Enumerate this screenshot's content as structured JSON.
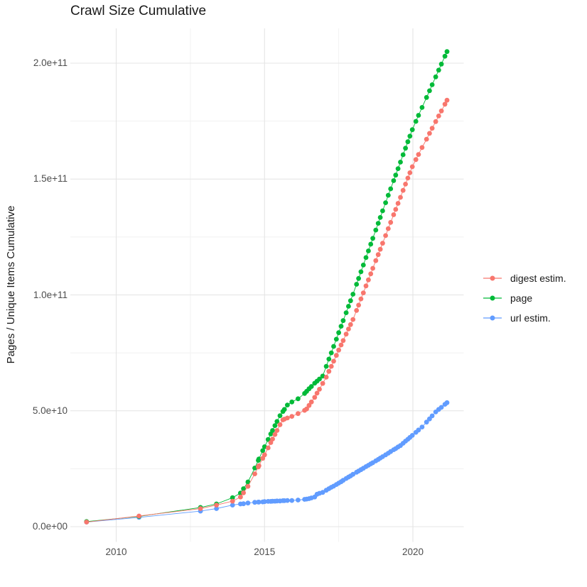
{
  "title": "Crawl Size Cumulative",
  "chart_data": {
    "type": "scatter",
    "title": "Crawl Size Cumulative",
    "xlabel": "",
    "ylabel": "Pages / Unique Items Cumulative",
    "legend_position": "right",
    "grid": true,
    "y_unit_multiplier": 10000000000.0,
    "x_ticks": [
      {
        "value": 2010,
        "label": "2010"
      },
      {
        "value": 2015,
        "label": "2015"
      },
      {
        "value": 2020,
        "label": "2020"
      }
    ],
    "y_ticks": [
      {
        "value": 0,
        "label": "0.0e+00"
      },
      {
        "value": 5,
        "label": "5.0e+10"
      },
      {
        "value": 10,
        "label": "1.0e+11"
      },
      {
        "value": 15,
        "label": "1.5e+11"
      },
      {
        "value": 20,
        "label": "2.0e+11"
      }
    ],
    "x_minor": [
      2012.5,
      2017.5
    ],
    "y_minor": [
      2.5,
      7.5,
      12.5,
      17.5
    ],
    "xlim": [
      2008.6,
      2021.7
    ],
    "ylim": [
      -0.65,
      21.5
    ],
    "colors": {
      "grid_major": "#e4e4e4",
      "grid_minor": "#f1f1f1",
      "axis_text": "#4d4d4d",
      "title_text": "#1a1a1a",
      "background": "#ffffff"
    },
    "x": [
      2009.0,
      2010.77,
      2012.84,
      2013.38,
      2013.92,
      2014.19,
      2014.29,
      2014.44,
      2014.67,
      2014.79,
      2014.81,
      2014.94,
      2015.0,
      2015.12,
      2015.21,
      2015.27,
      2015.35,
      2015.42,
      2015.52,
      2015.62,
      2015.67,
      2015.77,
      2015.92,
      2016.13,
      2016.35,
      2016.42,
      2016.5,
      2016.58,
      2016.69,
      2016.77,
      2016.85,
      2016.96,
      2017.08,
      2017.17,
      2017.25,
      2017.33,
      2017.42,
      2017.5,
      2017.58,
      2017.65,
      2017.75,
      2017.83,
      2017.9,
      2017.98,
      2018.1,
      2018.17,
      2018.25,
      2018.33,
      2018.42,
      2018.5,
      2018.58,
      2018.65,
      2018.75,
      2018.83,
      2018.9,
      2018.98,
      2019.08,
      2019.17,
      2019.25,
      2019.35,
      2019.42,
      2019.5,
      2019.58,
      2019.67,
      2019.75,
      2019.83,
      2019.9,
      2019.98,
      2020.1,
      2020.19,
      2020.31,
      2020.46,
      2020.56,
      2020.65,
      2020.77,
      2020.87,
      2020.96,
      2021.08,
      2021.15
    ],
    "series": [
      {
        "name": "digest estim.",
        "color": "#F8766D",
        "y": [
          0.2,
          0.46,
          0.78,
          0.93,
          1.1,
          1.28,
          1.46,
          1.74,
          2.28,
          2.58,
          2.63,
          2.95,
          3.1,
          3.4,
          3.63,
          3.78,
          3.98,
          4.15,
          4.4,
          4.61,
          4.64,
          4.69,
          4.76,
          4.88,
          5.02,
          5.08,
          5.23,
          5.38,
          5.58,
          5.76,
          5.93,
          6.18,
          6.45,
          6.7,
          6.92,
          7.14,
          7.39,
          7.62,
          7.84,
          8.03,
          8.31,
          8.53,
          8.72,
          8.94,
          9.33,
          9.56,
          9.83,
          10.09,
          10.39,
          10.65,
          10.91,
          11.15,
          11.48,
          11.74,
          11.97,
          12.23,
          12.56,
          12.86,
          13.13,
          13.46,
          13.69,
          13.95,
          14.21,
          14.51,
          14.78,
          15.04,
          15.27,
          15.53,
          15.84,
          16.06,
          16.36,
          16.72,
          16.97,
          17.19,
          17.48,
          17.72,
          17.94,
          18.23,
          18.4
        ]
      },
      {
        "name": "page",
        "color": "#00BA38",
        "y": [
          0.22,
          0.44,
          0.83,
          0.98,
          1.25,
          1.45,
          1.64,
          1.93,
          2.53,
          2.86,
          2.92,
          3.28,
          3.45,
          3.76,
          4.0,
          4.15,
          4.36,
          4.54,
          4.79,
          4.97,
          5.06,
          5.25,
          5.38,
          5.52,
          5.75,
          5.84,
          5.95,
          6.05,
          6.19,
          6.28,
          6.37,
          6.5,
          6.92,
          7.23,
          7.5,
          7.78,
          8.09,
          8.37,
          8.65,
          8.89,
          9.23,
          9.51,
          9.75,
          10.03,
          10.46,
          10.71,
          11.0,
          11.29,
          11.61,
          11.9,
          12.19,
          12.44,
          12.8,
          13.09,
          13.34,
          13.63,
          13.98,
          14.3,
          14.58,
          14.93,
          15.17,
          15.45,
          15.73,
          16.05,
          16.33,
          16.61,
          16.85,
          17.13,
          17.49,
          17.75,
          18.09,
          18.52,
          18.81,
          19.07,
          19.41,
          19.7,
          19.96,
          20.3,
          20.5
        ]
      },
      {
        "name": "url estim.",
        "color": "#619CFF",
        "y": [
          0.2,
          0.4,
          0.67,
          0.78,
          0.93,
          0.98,
          0.99,
          1.02,
          1.05,
          1.06,
          1.06,
          1.07,
          1.08,
          1.09,
          1.09,
          1.1,
          1.1,
          1.11,
          1.11,
          1.12,
          1.12,
          1.13,
          1.13,
          1.15,
          1.18,
          1.19,
          1.21,
          1.24,
          1.28,
          1.4,
          1.44,
          1.48,
          1.57,
          1.64,
          1.7,
          1.75,
          1.82,
          1.88,
          1.94,
          2.0,
          2.08,
          2.14,
          2.19,
          2.26,
          2.35,
          2.4,
          2.46,
          2.52,
          2.59,
          2.65,
          2.71,
          2.76,
          2.84,
          2.9,
          2.96,
          3.02,
          3.1,
          3.17,
          3.24,
          3.32,
          3.37,
          3.44,
          3.5,
          3.6,
          3.69,
          3.77,
          3.85,
          3.94,
          4.07,
          4.17,
          4.3,
          4.51,
          4.65,
          4.78,
          4.95,
          5.06,
          5.15,
          5.28,
          5.35
        ]
      }
    ],
    "draw_order": [
      "url estim.",
      "page",
      "digest estim."
    ]
  }
}
